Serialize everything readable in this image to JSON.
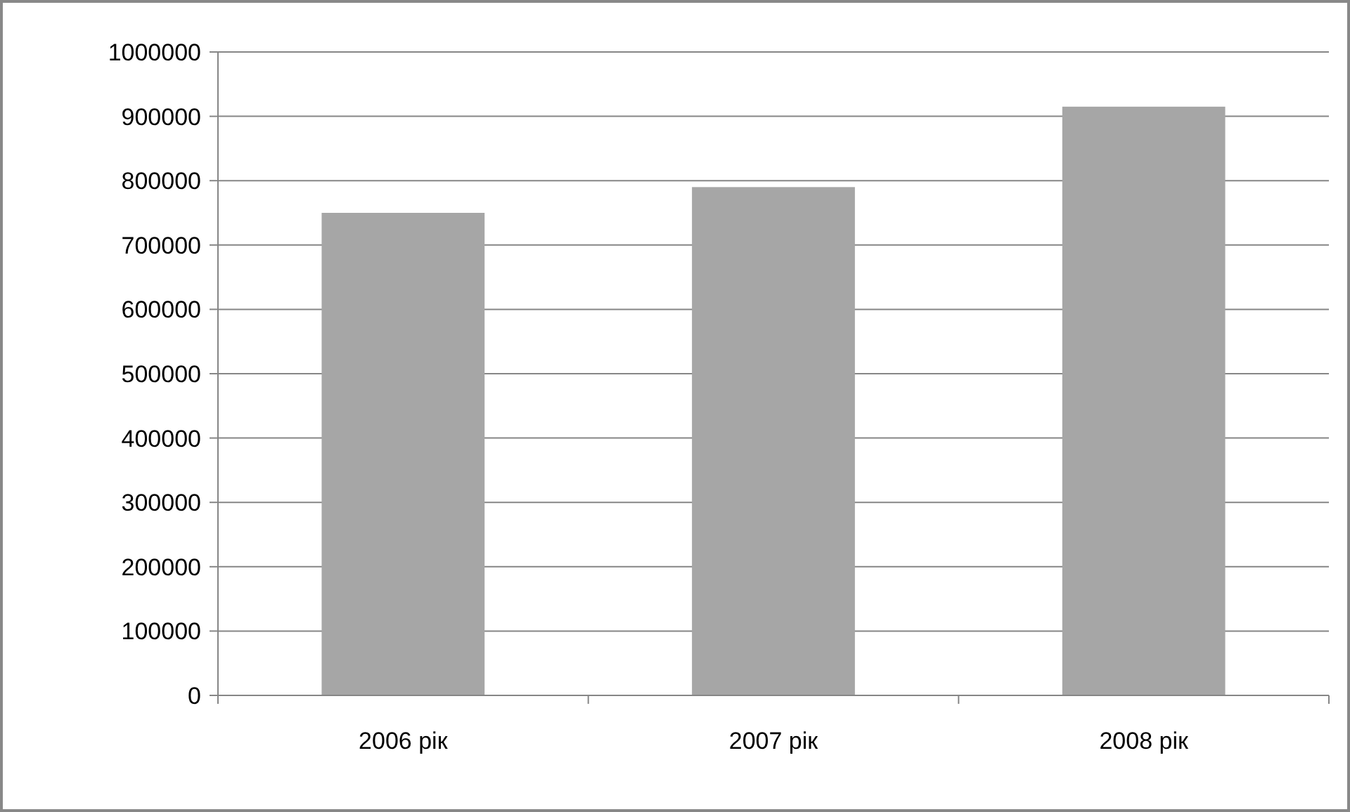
{
  "chart_data": {
    "type": "bar",
    "categories": [
      "2006 рік",
      "2007 рік",
      "2008 рік"
    ],
    "values": [
      750000,
      790000,
      915000
    ],
    "color": "#a6a6a6",
    "ylim": [
      0,
      1000000
    ],
    "yticks": [
      0,
      100000,
      200000,
      300000,
      400000,
      500000,
      600000,
      700000,
      800000,
      900000,
      1000000
    ],
    "grid": "y"
  }
}
